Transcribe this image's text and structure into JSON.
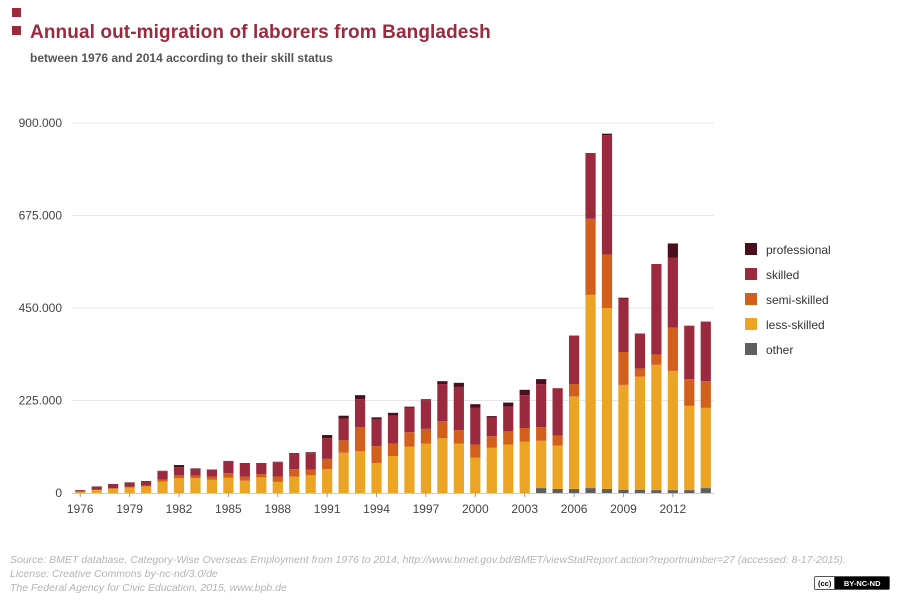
{
  "header": {
    "title": "Annual out-migration of laborers from Bangladesh",
    "subtitle": "between 1976 and 2014 according to their skill status"
  },
  "colors": {
    "professional": "#4a0e1c",
    "skilled": "#9c2a3f",
    "semi_skilled": "#d35f1d",
    "less_skilled": "#eba424",
    "other": "#5f5f5f",
    "accent": "#9c2a3f",
    "grid": "#e6e6e6"
  },
  "chart_data": {
    "type": "bar",
    "stacked": true,
    "title": "Annual out-migration of laborers from Bangladesh",
    "subtitle": "between 1976 and 2014 according to their skill status",
    "xlabel": "",
    "ylabel": "",
    "ylim": [
      0,
      900000
    ],
    "y_ticks": [
      0,
      225000,
      450000,
      675000,
      900000
    ],
    "y_tick_labels": [
      "0",
      "225.000",
      "450.000",
      "675.000",
      "900.000"
    ],
    "x_tick_labels": [
      "1976",
      "1979",
      "1982",
      "1985",
      "1988",
      "1991",
      "1994",
      "1997",
      "2000",
      "2003",
      "2006",
      "2009",
      "2012"
    ],
    "grid": true,
    "legend_position": "right",
    "categories": [
      "1976",
      "1977",
      "1978",
      "1979",
      "1980",
      "1981",
      "1982",
      "1983",
      "1984",
      "1985",
      "1986",
      "1987",
      "1988",
      "1989",
      "1990",
      "1991",
      "1992",
      "1993",
      "1994",
      "1995",
      "1996",
      "1997",
      "1998",
      "1999",
      "2000",
      "2001",
      "2002",
      "2003",
      "2004",
      "2005",
      "2006",
      "2007",
      "2008",
      "2009",
      "2010",
      "2011",
      "2012",
      "2013",
      "2014"
    ],
    "series": [
      {
        "key": "other",
        "name": "other",
        "values": [
          0,
          0,
          0,
          0,
          0,
          0,
          0,
          0,
          0,
          0,
          0,
          0,
          0,
          0,
          0,
          0,
          0,
          0,
          0,
          0,
          0,
          0,
          0,
          0,
          0,
          0,
          0,
          0,
          12000,
          10000,
          10000,
          12000,
          10000,
          8000,
          8000,
          7000,
          7000,
          7000,
          12000
        ]
      },
      {
        "key": "less_skilled",
        "name": "less-skilled",
        "values": [
          3000,
          7000,
          10000,
          13000,
          16000,
          28000,
          36000,
          36000,
          32000,
          37000,
          30000,
          38000,
          27000,
          40000,
          43000,
          58000,
          98000,
          102000,
          73000,
          90000,
          113000,
          120000,
          133000,
          120000,
          86000,
          110000,
          118000,
          125000,
          115000,
          105000,
          225000,
          470000,
          440000,
          255000,
          275000,
          305000,
          290000,
          205000,
          195000
        ]
      },
      {
        "key": "semi_skilled",
        "name": "semi-skilled",
        "values": [
          500,
          1000,
          2000,
          2000,
          2000,
          5000,
          7000,
          6000,
          8000,
          11000,
          10000,
          8000,
          13000,
          18000,
          14000,
          25000,
          30000,
          58000,
          41000,
          30000,
          35000,
          36000,
          42000,
          33000,
          32000,
          28000,
          32000,
          33000,
          33000,
          25000,
          30000,
          185000,
          130000,
          80000,
          20000,
          25000,
          105000,
          65000,
          65000
        ]
      },
      {
        "key": "skilled",
        "name": "skilled",
        "values": [
          3000,
          7000,
          9000,
          10000,
          10000,
          20000,
          20000,
          17000,
          16000,
          29000,
          32000,
          26000,
          35000,
          37000,
          40000,
          50000,
          53000,
          68000,
          66000,
          68000,
          60000,
          70000,
          90000,
          105000,
          90000,
          45000,
          60000,
          80000,
          105000,
          115000,
          118000,
          160000,
          290000,
          130000,
          85000,
          220000,
          170000,
          130000,
          145000
        ]
      },
      {
        "key": "professional",
        "name": "professional",
        "values": [
          500,
          1000,
          1000,
          1000,
          1000,
          1000,
          5000,
          1000,
          1000,
          1000,
          1000,
          1000,
          1000,
          2000,
          2000,
          8000,
          7000,
          10000,
          4000,
          7000,
          2000,
          2000,
          7000,
          10000,
          8000,
          4000,
          10000,
          13000,
          12000,
          0,
          0,
          0,
          4000,
          2000,
          0,
          0,
          35000,
          0,
          0
        ]
      }
    ],
    "legend_order": [
      "professional",
      "skilled",
      "semi_skilled",
      "less_skilled",
      "other"
    ]
  },
  "footer": {
    "source": "Source: BMET database, Category-Wise Overseas Employment from 1976 to 2014, http://www.bmet.gov.bd/BMET/viewStatReport.action?reportnumber=27 (accessed: 8-17-2015).",
    "license": "License: Creative Commons by-nc-nd/3.0/de",
    "publisher": "The Federal Agency for Civic Education, 2015, www.bpb.de",
    "badge_logo": "(cc)",
    "badge_text": "BY-NC-ND"
  }
}
